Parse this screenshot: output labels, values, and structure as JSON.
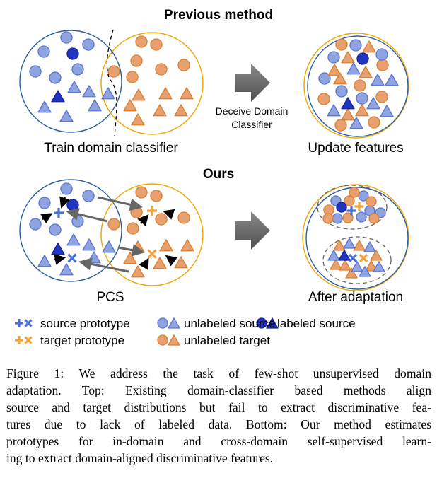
{
  "top": {
    "title": "Previous method",
    "left_label": "Train domain classifier",
    "arrow_label_line1": "Deceive Domain",
    "arrow_label_line2": "Classifier",
    "right_label": "Update features"
  },
  "bottom": {
    "title": "Ours",
    "left_label": "PCS",
    "right_label": "After adaptation"
  },
  "legend": [
    {
      "symbol": "plus-cross",
      "color": "#4a6fd6",
      "label": "source prototype"
    },
    {
      "symbol": "circle-triangle",
      "color": "#8fa3e0",
      "label": "unlabeled source"
    },
    {
      "symbol": "circle-triangle",
      "color": "#1f35c0",
      "label": "labeled source"
    },
    {
      "symbol": "plus-cross",
      "color": "#f2a33a",
      "label": "target prototype"
    },
    {
      "symbol": "circle-triangle",
      "color": "#e8a070",
      "label": "unlabeled target"
    }
  ],
  "caption": {
    "lines": [
      "Figure 1: We address the task of few-shot unsupervised domain",
      "adaptation. Top: Existing domain-classifier based methods align",
      "source and target distributions but fail to extract discriminative fea-",
      "tures due to lack of labeled data. Bottom: Our method estimates",
      "prototypes for in-domain and cross-domain self-supervised learn-",
      "ing to extract domain-aligned discriminative features."
    ]
  },
  "colors": {
    "source_fill": "#8fa3e0",
    "source_stroke": "#5a74cf",
    "labeled_source": "#1f35c0",
    "target_fill": "#e8a070",
    "target_stroke": "#d9802e",
    "source_domain_outline": "#2b5e9e",
    "target_domain_outline": "#f0a500",
    "source_prototype": "#4a6fd6",
    "target_prototype": "#f2a33a",
    "arrow_gray": "#666666"
  }
}
